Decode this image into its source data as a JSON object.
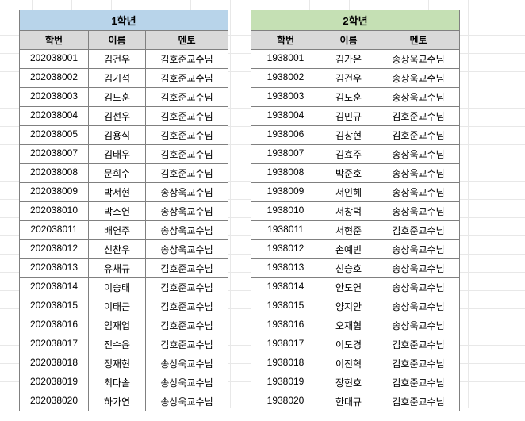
{
  "groups": [
    {
      "title": "1학년",
      "title_class": "title-blue",
      "columns": [
        "학번",
        "이름",
        "멘토"
      ],
      "rows": [
        [
          "202038001",
          "김건우",
          "김호준교수님"
        ],
        [
          "202038002",
          "김기석",
          "김호준교수님"
        ],
        [
          "202038003",
          "김도훈",
          "김호준교수님"
        ],
        [
          "202038004",
          "김선우",
          "김호준교수님"
        ],
        [
          "202038005",
          "김용식",
          "김호준교수님"
        ],
        [
          "202038007",
          "김태우",
          "김호준교수님"
        ],
        [
          "202038008",
          "문희수",
          "김호준교수님"
        ],
        [
          "202038009",
          "박서현",
          "송상욱교수님"
        ],
        [
          "202038010",
          "박소연",
          "송상욱교수님"
        ],
        [
          "202038011",
          "배연주",
          "송상욱교수님"
        ],
        [
          "202038012",
          "신찬우",
          "송상욱교수님"
        ],
        [
          "202038013",
          "유채규",
          "김호준교수님"
        ],
        [
          "202038014",
          "이승태",
          "김호준교수님"
        ],
        [
          "202038015",
          "이태근",
          "김호준교수님"
        ],
        [
          "202038016",
          "임재업",
          "김호준교수님"
        ],
        [
          "202038017",
          "전수윤",
          "김호준교수님"
        ],
        [
          "202038018",
          "정재현",
          "송상욱교수님"
        ],
        [
          "202038019",
          "최다솔",
          "송상욱교수님"
        ],
        [
          "202038020",
          "하가연",
          "송상욱교수님"
        ]
      ]
    },
    {
      "title": "2학년",
      "title_class": "title-green",
      "columns": [
        "학번",
        "이름",
        "멘토"
      ],
      "rows": [
        [
          "1938001",
          "김가은",
          "송상욱교수님"
        ],
        [
          "1938002",
          "김건우",
          "송상욱교수님"
        ],
        [
          "1938003",
          "김도훈",
          "송상욱교수님"
        ],
        [
          "1938004",
          "김민규",
          "김호준교수님"
        ],
        [
          "1938006",
          "김창현",
          "김호준교수님"
        ],
        [
          "1938007",
          "김효주",
          "송상욱교수님"
        ],
        [
          "1938008",
          "박준호",
          "송상욱교수님"
        ],
        [
          "1938009",
          "서인혜",
          "송상욱교수님"
        ],
        [
          "1938010",
          "서창덕",
          "송상욱교수님"
        ],
        [
          "1938011",
          "서현준",
          "김호준교수님"
        ],
        [
          "1938012",
          "손예빈",
          "송상욱교수님"
        ],
        [
          "1938013",
          "신승호",
          "송상욱교수님"
        ],
        [
          "1938014",
          "안도연",
          "송상욱교수님"
        ],
        [
          "1938015",
          "양지안",
          "송상욱교수님"
        ],
        [
          "1938016",
          "오재협",
          "송상욱교수님"
        ],
        [
          "1938017",
          "이도경",
          "김호준교수님"
        ],
        [
          "1938018",
          "이진혁",
          "김호준교수님"
        ],
        [
          "1938019",
          "장현호",
          "김호준교수님"
        ],
        [
          "1938020",
          "한대규",
          "김호준교수님"
        ]
      ]
    }
  ],
  "style": {
    "col_widths": {
      "id": 88,
      "name": 72,
      "mentor": 104
    },
    "title_colors": {
      "blue": "#b8d4ea",
      "green": "#c5e0b4"
    },
    "header_bg": "#d9d9d9",
    "border_color": "#808080",
    "font_size": 12
  }
}
